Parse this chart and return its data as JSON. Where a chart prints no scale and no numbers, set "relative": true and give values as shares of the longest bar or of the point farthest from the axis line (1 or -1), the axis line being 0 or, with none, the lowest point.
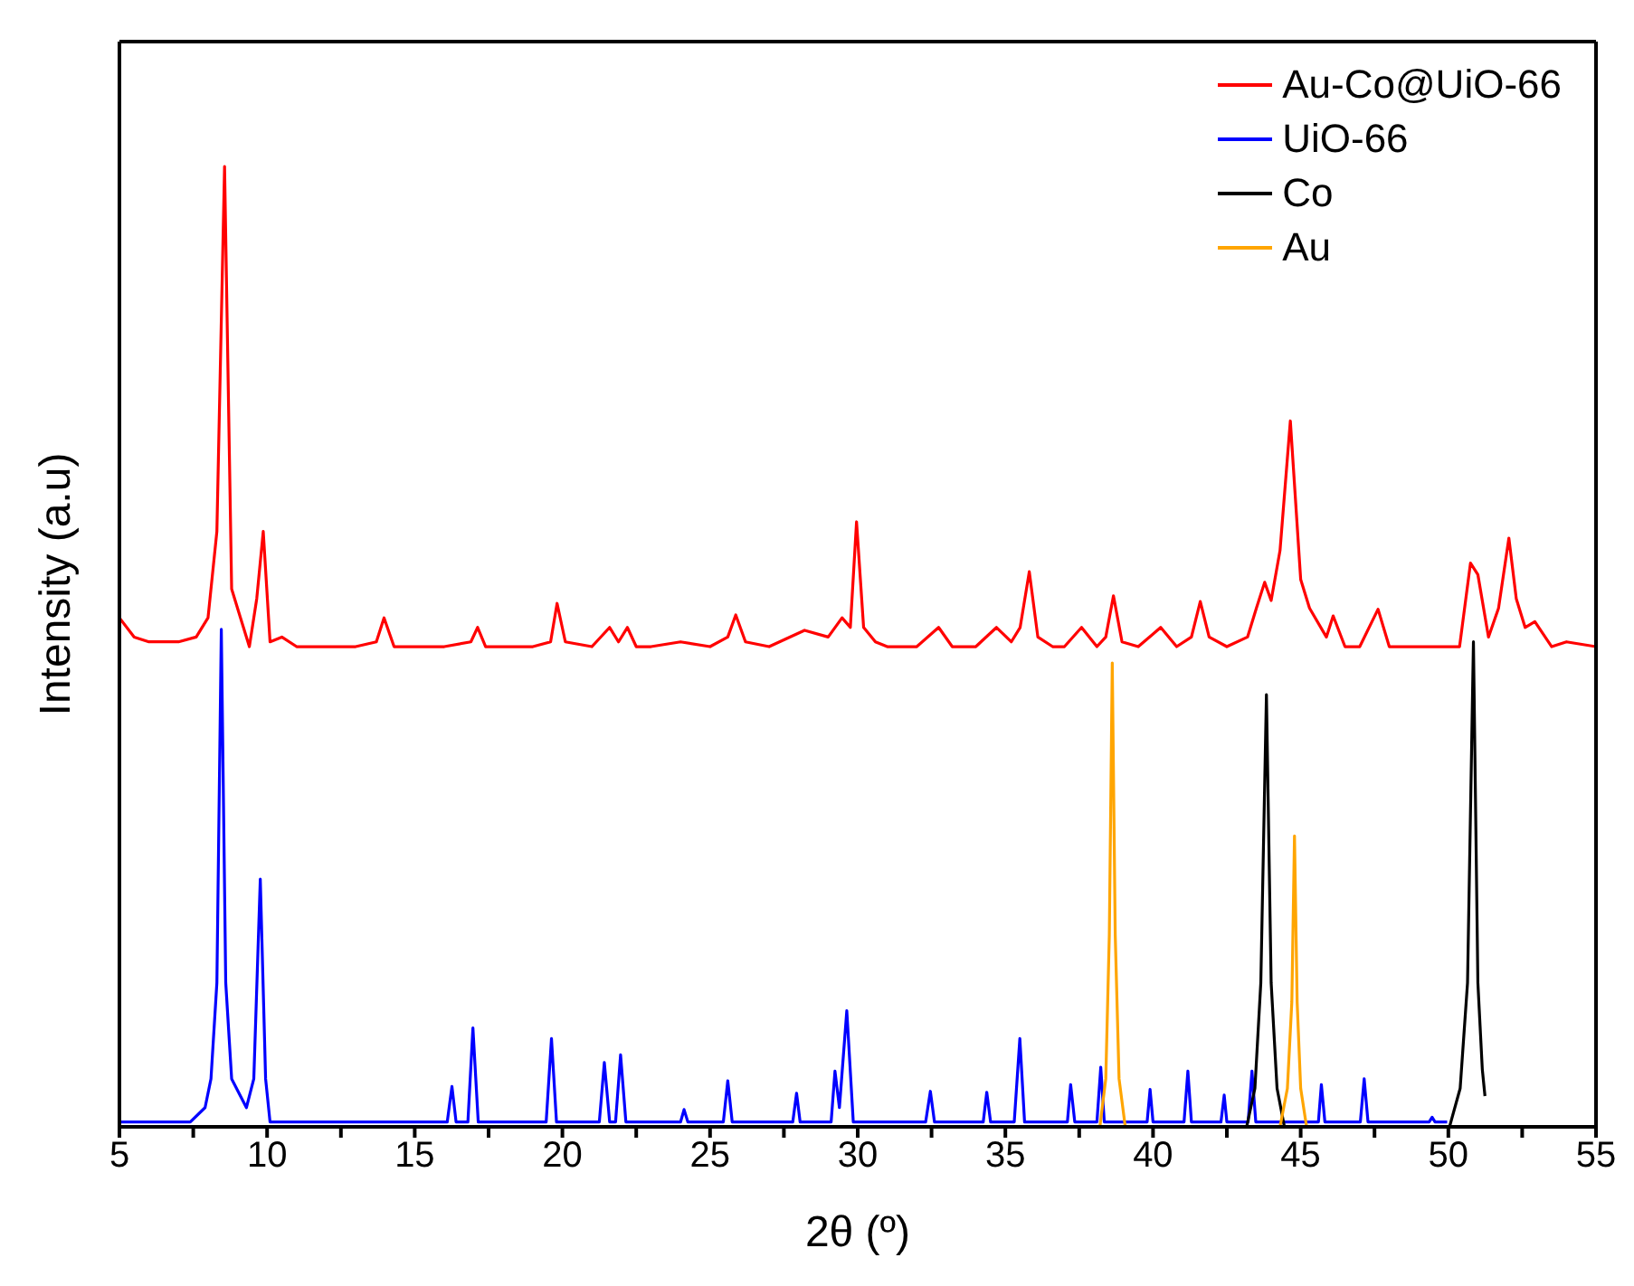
{
  "chart_data": {
    "type": "line",
    "relative": true,
    "xlabel": "2θ (º)",
    "ylabel": "Intensity (a.u)",
    "xlim": [
      5,
      55
    ],
    "xticks": [
      5,
      {
        "value": 7.5,
        "label": null
      },
      10,
      {
        "value": 12.5,
        "label": null
      },
      15,
      {
        "value": 17.5,
        "label": null
      },
      20,
      {
        "value": 22.5,
        "label": null
      },
      25,
      {
        "value": 27.5,
        "label": null
      },
      30,
      {
        "value": 32.5,
        "label": null
      },
      35,
      {
        "value": 37.5,
        "label": null
      },
      40,
      {
        "value": 42.5,
        "label": null
      },
      45,
      {
        "value": 47.5,
        "label": null
      },
      50,
      {
        "value": 52.5,
        "label": null
      },
      55
    ],
    "legend": "top right",
    "line_style": "solid",
    "marker": "none",
    "series": [
      {
        "name": "Au-Co@UiO-66",
        "color": "#ff0000",
        "x": [
          5,
          5.5,
          6,
          7,
          7.6,
          8,
          8.3,
          8.56,
          8.8,
          9.1,
          9.4,
          9.65,
          9.87,
          10.1,
          10.5,
          11,
          12,
          13,
          13.7,
          13.96,
          14.3,
          15,
          16,
          16.9,
          17.13,
          17.4,
          18,
          19,
          19.6,
          19.82,
          20.1,
          21,
          21.6,
          21.9,
          22.2,
          22.5,
          23,
          24,
          25,
          25.6,
          25.87,
          26.2,
          27,
          28.2,
          29,
          29.47,
          29.75,
          29.96,
          30.2,
          30.6,
          31,
          32,
          32.74,
          33.2,
          34,
          34.7,
          35.2,
          35.5,
          35.81,
          36.1,
          36.6,
          37,
          37.58,
          38.1,
          38.4,
          38.66,
          38.95,
          39.5,
          40.26,
          40.8,
          41.3,
          41.6,
          41.9,
          42.5,
          43.2,
          43.5,
          43.78,
          44.0,
          44.3,
          44.65,
          45.0,
          45.3,
          45.87,
          46.1,
          46.5,
          47,
          47.62,
          48,
          49,
          50,
          50.38,
          50.75,
          51.0,
          51.36,
          51.7,
          52.05,
          52.3,
          52.6,
          52.93,
          53.5,
          54,
          55
        ],
        "values": [
          0.53,
          0.51,
          0.505,
          0.505,
          0.51,
          0.53,
          0.62,
          1.0,
          0.56,
          0.53,
          0.5,
          0.55,
          0.62,
          0.505,
          0.51,
          0.5,
          0.5,
          0.5,
          0.505,
          0.53,
          0.5,
          0.5,
          0.5,
          0.505,
          0.52,
          0.5,
          0.5,
          0.5,
          0.505,
          0.545,
          0.505,
          0.5,
          0.52,
          0.505,
          0.52,
          0.5,
          0.5,
          0.505,
          0.5,
          0.51,
          0.533,
          0.505,
          0.5,
          0.517,
          0.51,
          0.53,
          0.52,
          0.63,
          0.52,
          0.505,
          0.5,
          0.5,
          0.52,
          0.5,
          0.5,
          0.52,
          0.505,
          0.52,
          0.578,
          0.51,
          0.5,
          0.5,
          0.52,
          0.5,
          0.51,
          0.553,
          0.505,
          0.5,
          0.52,
          0.5,
          0.51,
          0.547,
          0.51,
          0.5,
          0.51,
          0.54,
          0.567,
          0.548,
          0.6,
          0.735,
          0.57,
          0.54,
          0.51,
          0.532,
          0.5,
          0.5,
          0.539,
          0.5,
          0.5,
          0.5,
          0.5,
          0.587,
          0.575,
          0.51,
          0.54,
          0.613,
          0.55,
          0.52,
          0.526,
          0.5,
          0.505,
          0.5
        ]
      },
      {
        "name": "UiO-66",
        "color": "#0000ff",
        "x": [
          5,
          7.4,
          7.9,
          8.1,
          8.3,
          8.45,
          8.6,
          8.8,
          9.3,
          9.55,
          9.77,
          9.95,
          10.1,
          16.1,
          16.26,
          16.4,
          16.8,
          16.97,
          17.15,
          19.45,
          19.63,
          19.8,
          21.25,
          21.42,
          21.6,
          21.8,
          21.97,
          22.15,
          24,
          24.12,
          24.25,
          25.45,
          25.6,
          25.75,
          27.8,
          27.93,
          28.05,
          29.1,
          29.23,
          29.38,
          29.63,
          29.85,
          32.3,
          32.46,
          32.6,
          34.25,
          34.37,
          34.5,
          35.3,
          35.49,
          35.65,
          37.1,
          37.21,
          37.35,
          38.1,
          38.23,
          38.35,
          39.8,
          39.9,
          40.0,
          41.05,
          41.18,
          41.3,
          42.3,
          42.41,
          42.5,
          43.22,
          43.35,
          43.48,
          45.6,
          45.7,
          45.82,
          47.02,
          47.15,
          47.28,
          49.35,
          49.45,
          49.55,
          49.96
        ],
        "values": [
          0.005,
          0.005,
          0.02,
          0.05,
          0.15,
          0.518,
          0.15,
          0.05,
          0.02,
          0.05,
          0.258,
          0.05,
          0.005,
          0.005,
          0.042,
          0.005,
          0.005,
          0.103,
          0.005,
          0.005,
          0.092,
          0.005,
          0.005,
          0.067,
          0.005,
          0.005,
          0.075,
          0.005,
          0.005,
          0.018,
          0.005,
          0.005,
          0.048,
          0.005,
          0.005,
          0.035,
          0.005,
          0.005,
          0.058,
          0.02,
          0.121,
          0.005,
          0.005,
          0.037,
          0.005,
          0.005,
          0.036,
          0.005,
          0.005,
          0.092,
          0.005,
          0.005,
          0.044,
          0.005,
          0.005,
          0.062,
          0.005,
          0.005,
          0.039,
          0.005,
          0.005,
          0.058,
          0.005,
          0.005,
          0.033,
          0.005,
          0.005,
          0.058,
          0.005,
          0.005,
          0.044,
          0.005,
          0.005,
          0.05,
          0.005,
          0.005,
          0.01,
          0.005,
          0.005
        ]
      },
      {
        "name": "Co",
        "color": "#000000",
        "x": [
          43.17,
          43.45,
          43.65,
          43.84,
          44.0,
          44.2,
          44.45,
          44.8,
          50.04,
          50.4,
          50.65,
          50.85,
          51.0,
          51.15,
          51.24
        ],
        "values": [
          0,
          0.04,
          0.15,
          0.45,
          0.15,
          0.04,
          0,
          null,
          0,
          0.04,
          0.15,
          0.505,
          0.15,
          0.06,
          0.032
        ]
      },
      {
        "name": "Au",
        "color": "#ffa500",
        "x": [
          38.2,
          38.4,
          38.52,
          38.62,
          38.72,
          38.85,
          39.06,
          42,
          44.3,
          44.55,
          44.7,
          44.79,
          44.88,
          45.0,
          45.2
        ],
        "values": [
          0,
          0.05,
          0.2,
          0.483,
          0.2,
          0.05,
          0,
          null,
          0,
          0.04,
          0.13,
          0.303,
          0.13,
          0.04,
          0
        ]
      }
    ]
  }
}
